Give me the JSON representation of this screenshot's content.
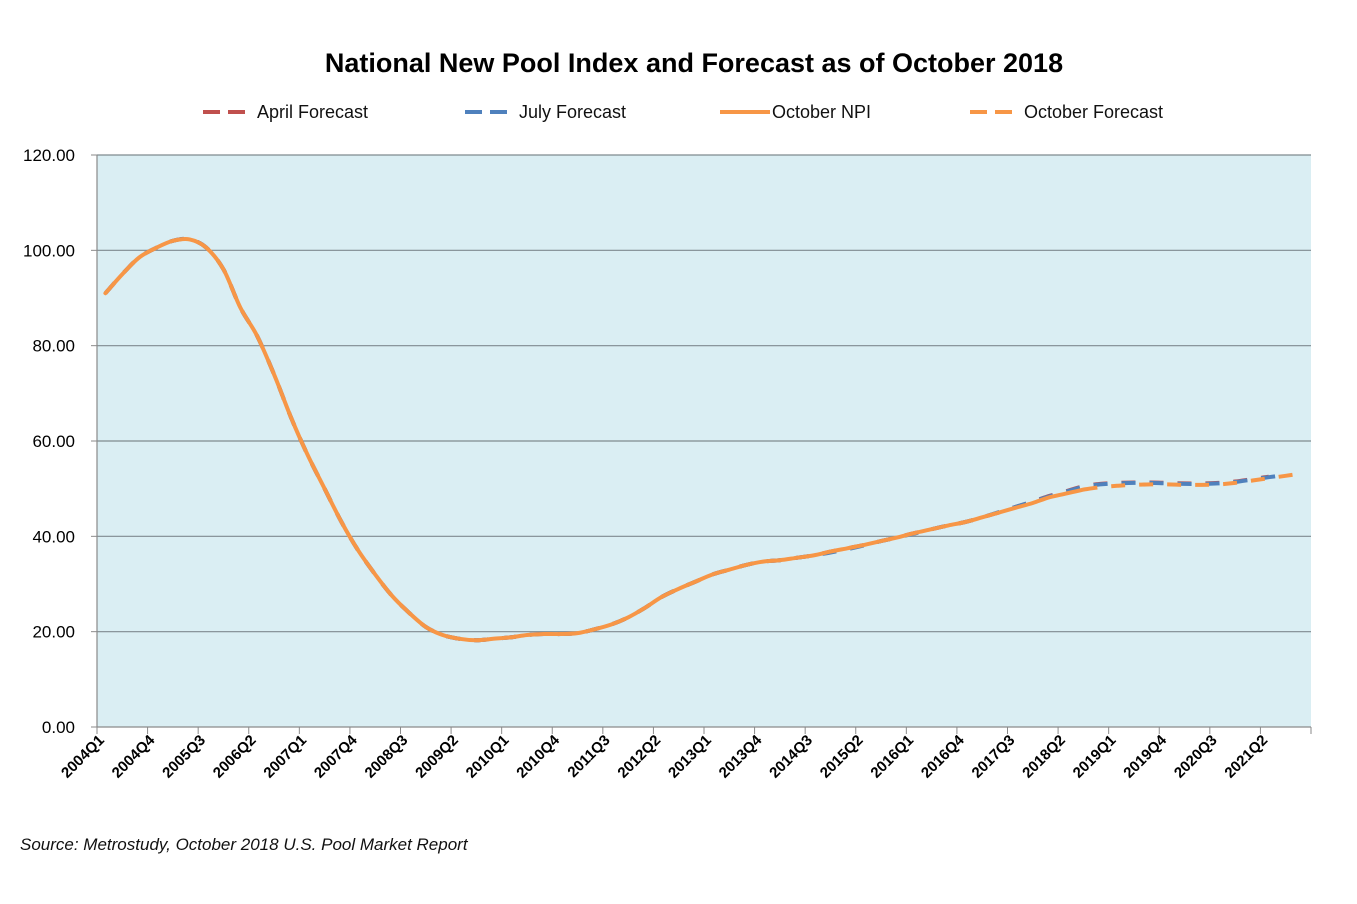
{
  "chart_data": {
    "type": "line",
    "title": "National New Pool Index and Forecast as of October 2018",
    "xlabel": "",
    "ylabel": "",
    "ylim": [
      0,
      120
    ],
    "yticks": [
      "0.00",
      "20.00",
      "40.00",
      "60.00",
      "80.00",
      "100.00",
      "120.00"
    ],
    "ytick_values": [
      0,
      20,
      40,
      60,
      80,
      100,
      120
    ],
    "grid": true,
    "legend_position": "top",
    "x": [
      "2004Q1",
      "2004Q2",
      "2004Q3",
      "2004Q4",
      "2005Q1",
      "2005Q2",
      "2005Q3",
      "2005Q4",
      "2006Q1",
      "2006Q2",
      "2006Q3",
      "2006Q4",
      "2007Q1",
      "2007Q2",
      "2007Q3",
      "2007Q4",
      "2008Q1",
      "2008Q2",
      "2008Q3",
      "2008Q4",
      "2009Q1",
      "2009Q2",
      "2009Q3",
      "2009Q4",
      "2010Q1",
      "2010Q2",
      "2010Q3",
      "2010Q4",
      "2011Q1",
      "2011Q2",
      "2011Q3",
      "2011Q4",
      "2012Q1",
      "2012Q2",
      "2012Q3",
      "2012Q4",
      "2013Q1",
      "2013Q2",
      "2013Q3",
      "2013Q4",
      "2014Q1",
      "2014Q2",
      "2014Q3",
      "2014Q4",
      "2015Q1",
      "2015Q2",
      "2015Q3",
      "2015Q4",
      "2016Q1",
      "2016Q2",
      "2016Q3",
      "2016Q4",
      "2017Q1",
      "2017Q2",
      "2017Q3",
      "2017Q4",
      "2018Q1",
      "2018Q2",
      "2018Q3",
      "2018Q4",
      "2019Q1",
      "2019Q2",
      "2019Q3",
      "2019Q4",
      "2020Q1",
      "2020Q2",
      "2020Q3",
      "2020Q4",
      "2021Q1",
      "2021Q2",
      "2021Q3",
      "2021Q4"
    ],
    "xtick_labels": [
      "2004Q1",
      "2004Q4",
      "2005Q3",
      "2006Q2",
      "2007Q1",
      "2007Q4",
      "2008Q3",
      "2009Q2",
      "2010Q1",
      "2010Q4",
      "2011Q3",
      "2012Q2",
      "2013Q1",
      "2013Q4",
      "2014Q3",
      "2015Q2",
      "2016Q1",
      "2016Q4",
      "2017Q3",
      "2018Q2",
      "2019Q1",
      "2019Q4",
      "2020Q3",
      "2021Q2"
    ],
    "series": [
      {
        "name": "April Forecast",
        "color": "#C0504D",
        "style": "dashed",
        "start": "2004Q1",
        "values": [
          91,
          95,
          98.5,
          100.5,
          102,
          102.3,
          100.5,
          96,
          88,
          82,
          74,
          65,
          57,
          50,
          43,
          37,
          32,
          27.5,
          24,
          21,
          19.3,
          18.5,
          18.2,
          18.5,
          18.8,
          19.3,
          19.5,
          19.5,
          19.7,
          20.5,
          21.5,
          23,
          25,
          27.3,
          29,
          30.5,
          32,
          33,
          34,
          34.7,
          35,
          35.5,
          36,
          36.8,
          37.5,
          38.2,
          39,
          39.8,
          40.7,
          41.5,
          42.3,
          43,
          44,
          45,
          46.2,
          47.3,
          48.5,
          49.5,
          50.5,
          51,
          51.2,
          51.3,
          51.3,
          51.2,
          51.1,
          51.1,
          51.2,
          51.5,
          52,
          52.5
        ]
      },
      {
        "name": "July Forecast",
        "color": "#4F81BD",
        "style": "dashed",
        "start": "2004Q1",
        "values": [
          91,
          95,
          98.5,
          100.5,
          102,
          102.3,
          100.5,
          96,
          88,
          82,
          74,
          65,
          57,
          50,
          43,
          37,
          32,
          27.5,
          24,
          21,
          19.3,
          18.5,
          18.2,
          18.5,
          18.8,
          19.3,
          19.5,
          19.5,
          19.7,
          20.5,
          21.5,
          23,
          25,
          27.3,
          29,
          30.5,
          32,
          33,
          34,
          34.7,
          35,
          35.5,
          36,
          36.6,
          37.3,
          38.1,
          39,
          39.8,
          40.6,
          41.5,
          42.3,
          43,
          44,
          45.1,
          46.2,
          47.3,
          48.4,
          49.4,
          50.4,
          50.9,
          51.1,
          51.2,
          51.2,
          51.1,
          51,
          51,
          51.1,
          51.4,
          51.9,
          52.4,
          52.9
        ]
      },
      {
        "name": "October NPI",
        "color": "#F79646",
        "style": "solid",
        "start": "2004Q1",
        "values": [
          91,
          95,
          98.5,
          100.5,
          102,
          102.3,
          100.5,
          96,
          88,
          82,
          74,
          65,
          57,
          50,
          43,
          37,
          32,
          27.5,
          24,
          21,
          19.3,
          18.5,
          18.2,
          18.5,
          18.8,
          19.3,
          19.5,
          19.5,
          19.7,
          20.5,
          21.5,
          23,
          25,
          27.3,
          29,
          30.5,
          32,
          33,
          34,
          34.7,
          35,
          35.5,
          36,
          36.8,
          37.5,
          38.2,
          39,
          39.8,
          40.7,
          41.5,
          42.3,
          43,
          44,
          45,
          46,
          47,
          48.2,
          49,
          49.8
        ]
      },
      {
        "name": "October Forecast",
        "color": "#F79646",
        "style": "dashed",
        "start": "2018Q3",
        "values": [
          49.8,
          50.3,
          50.6,
          50.8,
          50.9,
          50.9,
          50.8,
          50.8,
          50.9,
          51.2,
          51.7,
          52.2,
          52.7,
          53.2
        ]
      }
    ]
  },
  "source_text": "Source:  Metrostudy, October 2018 U.S. Pool Market Report"
}
